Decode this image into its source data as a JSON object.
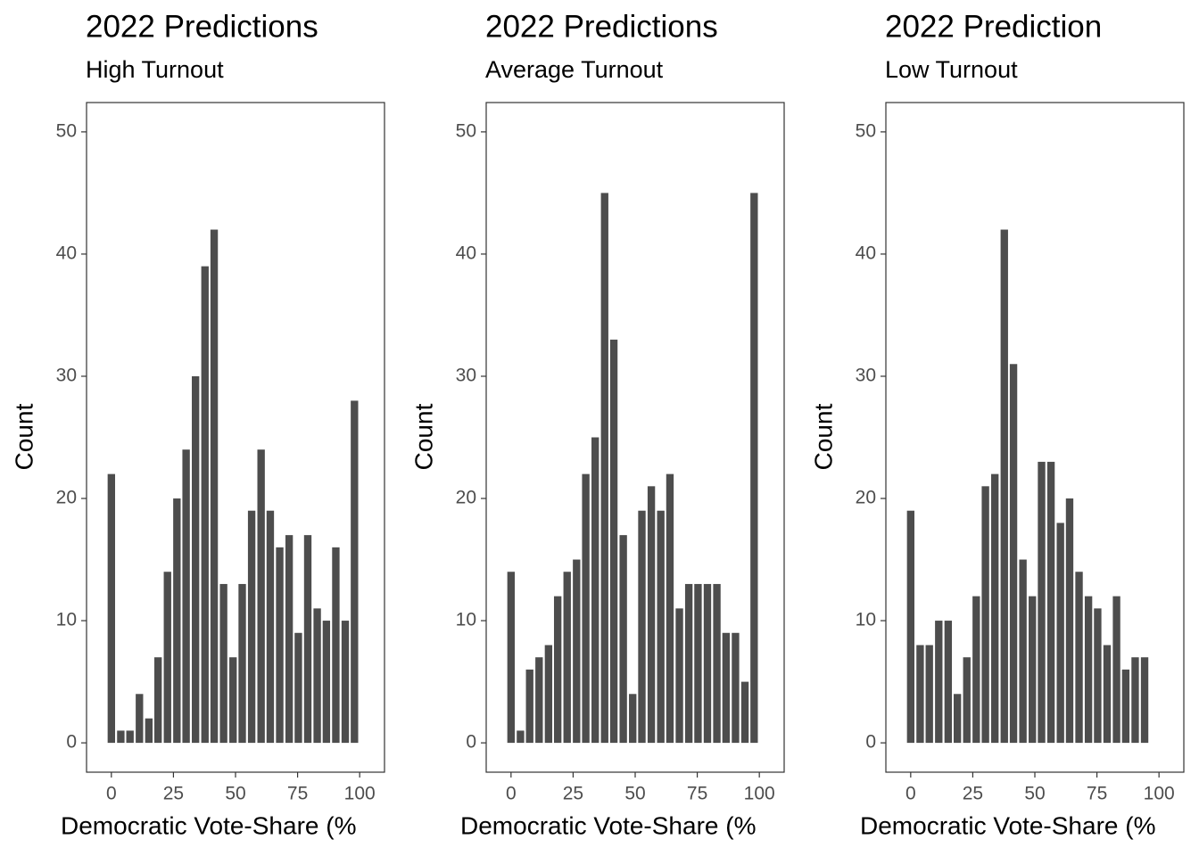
{
  "chart_data": [
    {
      "type": "bar",
      "title": "2022 Predictions",
      "subtitle": "High Turnout",
      "xlabel": "Democratic Vote-Share (%",
      "ylabel": "Count",
      "color": "#4d4d4d",
      "x": [
        0,
        3.8,
        7.5,
        11.3,
        15.1,
        18.8,
        22.6,
        26.4,
        30.1,
        33.9,
        37.7,
        41.4,
        45.2,
        49,
        52.7,
        56.5,
        60.3,
        64,
        67.8,
        71.6,
        75.3,
        79.1,
        82.9,
        86.6,
        90.4,
        94.2,
        97.9
      ],
      "values": [
        22,
        1,
        1,
        4,
        2,
        7,
        14,
        20,
        24,
        30,
        39,
        42,
        13,
        7,
        13,
        19,
        24,
        19,
        16,
        17,
        9,
        17,
        11,
        10,
        16,
        10,
        28
      ],
      "xlim": [
        -10,
        110
      ],
      "ylim": [
        -2.4,
        52.4
      ],
      "xticks": [
        0,
        25,
        50,
        75,
        100
      ],
      "yticks": [
        0,
        10,
        20,
        30,
        40,
        50
      ]
    },
    {
      "type": "bar",
      "title": "2022 Predictions",
      "subtitle": "Average Turnout",
      "xlabel": "Democratic Vote-Share (%",
      "ylabel": "Count",
      "color": "#4d4d4d",
      "x": [
        0,
        3.8,
        7.5,
        11.3,
        15.1,
        18.8,
        22.6,
        26.4,
        30.1,
        33.9,
        37.7,
        41.4,
        45.2,
        49,
        52.7,
        56.5,
        60.3,
        64,
        67.8,
        71.6,
        75.3,
        79.1,
        82.9,
        86.6,
        90.4,
        94.2,
        97.9
      ],
      "values": [
        14,
        1,
        6,
        7,
        8,
        12,
        14,
        15,
        22,
        25,
        45,
        33,
        17,
        4,
        19,
        21,
        19,
        22,
        11,
        13,
        13,
        13,
        13,
        9,
        9,
        5,
        45
      ],
      "xlim": [
        -10,
        110
      ],
      "ylim": [
        -2.4,
        52.4
      ],
      "xticks": [
        0,
        25,
        50,
        75,
        100
      ],
      "yticks": [
        0,
        10,
        20,
        30,
        40,
        50
      ]
    },
    {
      "type": "bar",
      "title": "2022 Prediction",
      "subtitle": "Low Turnout",
      "xlabel": "Democratic Vote-Share (%",
      "ylabel": "Count",
      "color": "#4d4d4d",
      "x": [
        0,
        3.8,
        7.5,
        11.3,
        15.1,
        18.8,
        22.6,
        26.4,
        30.1,
        33.9,
        37.7,
        41.4,
        45.2,
        49,
        52.7,
        56.5,
        60.3,
        64,
        67.8,
        71.6,
        75.3,
        79.1,
        82.9,
        86.6,
        90.4,
        94.2
      ],
      "values": [
        19,
        8,
        8,
        10,
        10,
        4,
        7,
        12,
        21,
        22,
        42,
        31,
        15,
        12,
        23,
        23,
        18,
        20,
        14,
        12,
        11,
        8,
        12,
        6,
        7,
        7
      ],
      "xlim": [
        -10,
        110
      ],
      "ylim": [
        -2.4,
        52.4
      ],
      "xticks": [
        0,
        25,
        50,
        75,
        100
      ],
      "yticks": [
        0,
        10,
        20,
        30,
        40,
        50
      ]
    }
  ]
}
